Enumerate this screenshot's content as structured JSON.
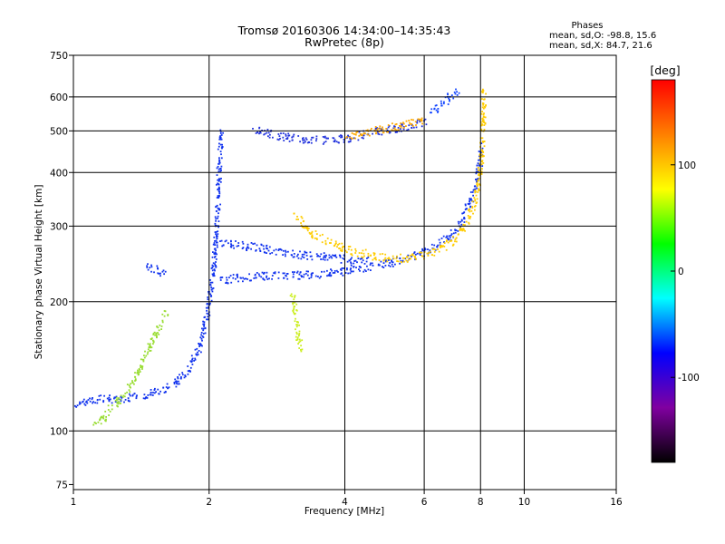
{
  "chart_data": {
    "type": "scatter",
    "title": "Tromsø 20160306 14:34:00–14:35:43",
    "subtitle": "RwPretec (8p)",
    "xlabel": "Frequency [MHz]",
    "ylabel": "Stationary phase Virtual Height [km]",
    "x_scale": "log2",
    "y_scale": "log",
    "xlim": [
      1,
      16
    ],
    "ylim": [
      73,
      750
    ],
    "x_ticks": [
      1,
      2,
      4,
      6,
      8,
      10,
      16
    ],
    "x_tick_labels": [
      "1",
      "2",
      "4",
      "6",
      "8",
      "10",
      "16"
    ],
    "y_ticks": [
      75,
      100,
      200,
      300,
      400,
      500,
      600,
      750
    ],
    "y_tick_labels": [
      "75",
      "100",
      "200",
      "300",
      "400",
      "500",
      "600",
      "750"
    ],
    "grid": true,
    "phase_stats": {
      "heading": "Phases",
      "line_o": "mean, sd,O: -98.8, 15.6",
      "line_x": "mean, sd,X:  84.7, 21.6"
    },
    "colorbar": {
      "label": "[deg]",
      "range": [
        -180,
        180
      ],
      "ticks": [
        100,
        0,
        -100
      ],
      "tick_labels": [
        "100",
        "0",
        "-100"
      ],
      "colors": [
        "#ff0000",
        "#ff8000",
        "#ffff00",
        "#00ff00",
        "#00ffff",
        "#0000ff",
        "#8000a0",
        "#000000"
      ]
    },
    "traces": [
      {
        "name": "",
        "color": "#1133ee",
        "points": [
          [
            1.0,
            116
          ],
          [
            1.05,
            117
          ],
          [
            1.1,
            118
          ],
          [
            1.15,
            119
          ],
          [
            1.2,
            119
          ],
          [
            1.3,
            120
          ],
          [
            1.4,
            121
          ],
          [
            1.5,
            123
          ],
          [
            1.6,
            126
          ],
          [
            1.7,
            131
          ],
          [
            1.8,
            140
          ],
          [
            1.9,
            158
          ],
          [
            1.95,
            178
          ],
          [
            2.0,
            205
          ],
          [
            2.05,
            250
          ],
          [
            2.08,
            320
          ],
          [
            2.1,
            420
          ],
          [
            2.12,
            500
          ]
        ]
      },
      {
        "name": "",
        "color": "#1133ee",
        "points": [
          [
            2.1,
            225
          ],
          [
            2.3,
            228
          ],
          [
            2.6,
            230
          ],
          [
            3.0,
            231
          ],
          [
            3.5,
            233
          ],
          [
            4.0,
            237
          ],
          [
            4.5,
            242
          ],
          [
            5.0,
            247
          ],
          [
            5.5,
            253
          ],
          [
            6.0,
            262
          ],
          [
            6.5,
            275
          ],
          [
            7.0,
            292
          ],
          [
            7.3,
            315
          ],
          [
            7.6,
            348
          ],
          [
            7.8,
            385
          ],
          [
            7.95,
            420
          ],
          [
            8.0,
            460
          ]
        ]
      },
      {
        "name": "",
        "color": "#ffcc00",
        "points": [
          [
            3.1,
            320
          ],
          [
            3.3,
            295
          ],
          [
            3.6,
            278
          ],
          [
            4.0,
            266
          ],
          [
            4.5,
            258
          ],
          [
            5.0,
            253
          ],
          [
            5.5,
            254
          ],
          [
            6.0,
            258
          ],
          [
            6.5,
            266
          ],
          [
            7.0,
            282
          ],
          [
            7.4,
            305
          ],
          [
            7.7,
            340
          ],
          [
            7.9,
            380
          ],
          [
            8.0,
            420
          ],
          [
            8.05,
            480
          ],
          [
            8.1,
            560
          ],
          [
            8.12,
            620
          ]
        ]
      },
      {
        "name": "",
        "color": "#2233dd",
        "points": [
          [
            2.5,
            510
          ],
          [
            2.8,
            490
          ],
          [
            3.2,
            480
          ],
          [
            3.6,
            478
          ],
          [
            4.0,
            482
          ],
          [
            4.5,
            495
          ],
          [
            5.0,
            505
          ],
          [
            5.5,
            515
          ],
          [
            6.0,
            525
          ]
        ]
      },
      {
        "name": "",
        "color": "#ffaa00",
        "points": [
          [
            4.0,
            485
          ],
          [
            4.5,
            500
          ],
          [
            5.0,
            510
          ],
          [
            5.5,
            520
          ],
          [
            6.0,
            530
          ]
        ]
      },
      {
        "name": "",
        "color": "#1144ff",
        "points": [
          [
            6.2,
            555
          ],
          [
            6.5,
            575
          ],
          [
            6.8,
            600
          ],
          [
            7.1,
            625
          ]
        ]
      },
      {
        "name": "",
        "color": "#1133ee",
        "points": [
          [
            2.1,
            275
          ],
          [
            2.3,
            272
          ],
          [
            2.6,
            268
          ],
          [
            2.9,
            262
          ],
          [
            3.2,
            258
          ],
          [
            3.6,
            255
          ],
          [
            4.0,
            252
          ],
          [
            4.5,
            250
          ]
        ]
      },
      {
        "name": "",
        "color": "#99dd33",
        "points": [
          [
            1.1,
            104
          ],
          [
            1.15,
            106
          ],
          [
            1.2,
            113
          ],
          [
            1.3,
            122
          ],
          [
            1.4,
            140
          ],
          [
            1.5,
            165
          ],
          [
            1.6,
            190
          ]
        ]
      },
      {
        "name": "",
        "color": "#ccee22",
        "points": [
          [
            3.05,
            210
          ],
          [
            3.1,
            185
          ],
          [
            3.15,
            165
          ],
          [
            3.2,
            155
          ]
        ]
      },
      {
        "name": "",
        "color": "#1133ee",
        "points": [
          [
            1.45,
            245
          ],
          [
            1.5,
            240
          ],
          [
            1.55,
            236
          ],
          [
            1.6,
            232
          ]
        ]
      }
    ]
  }
}
